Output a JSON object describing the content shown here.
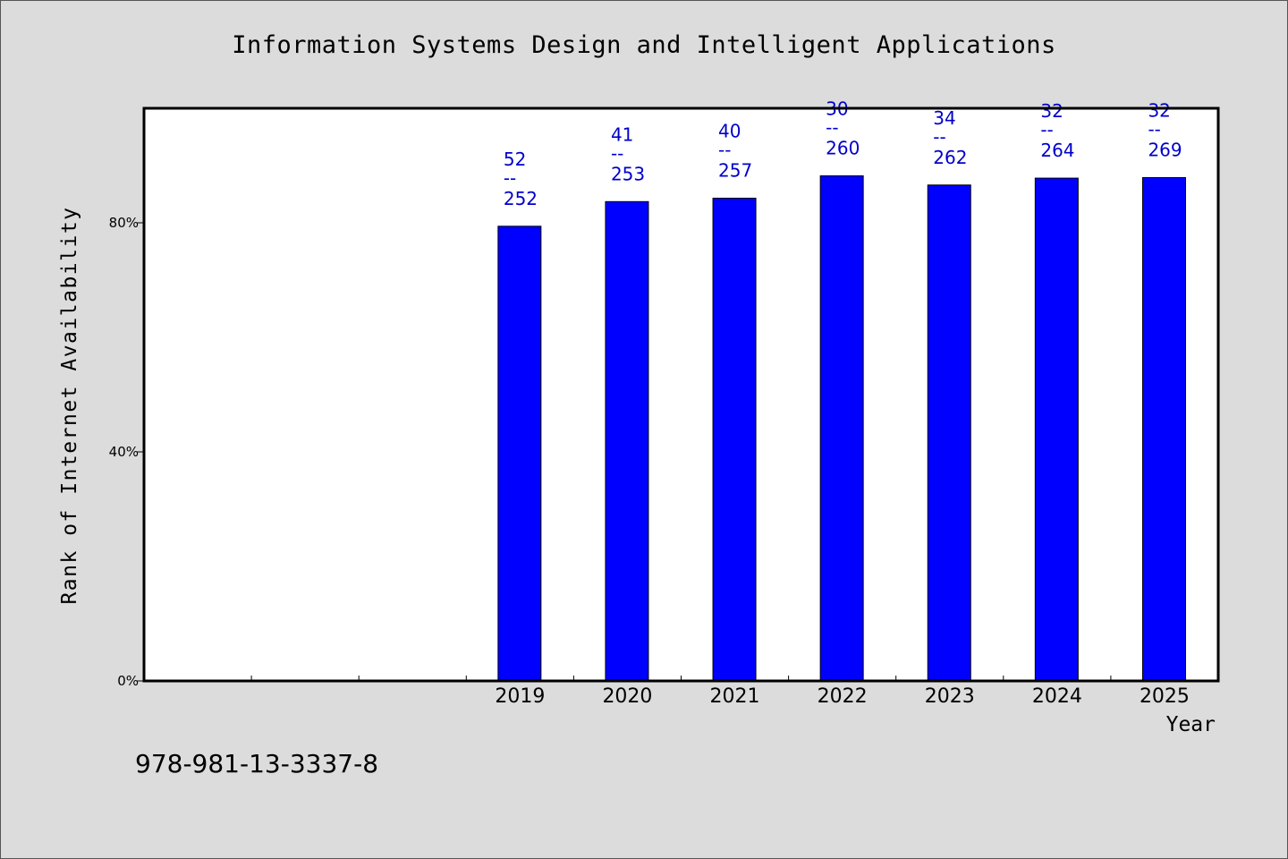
{
  "chart_data": {
    "type": "bar",
    "title": "Information Systems Design and Intelligent Applications",
    "xlabel": "Year",
    "ylabel": "Rank of Internet Availability",
    "categories": [
      "",
      "",
      "",
      "2019",
      "2020",
      "2021",
      "2022",
      "2023",
      "2024",
      "2025"
    ],
    "values": [
      null,
      null,
      null,
      79.4,
      83.7,
      84.3,
      88.2,
      86.6,
      87.8,
      87.9
    ],
    "bar_labels": [
      null,
      null,
      null,
      {
        "top": "52",
        "sep": "--",
        "bottom": "252"
      },
      {
        "top": "41",
        "sep": "--",
        "bottom": "253"
      },
      {
        "top": "40",
        "sep": "--",
        "bottom": "257"
      },
      {
        "top": "30",
        "sep": "--",
        "bottom": "260"
      },
      {
        "top": "34",
        "sep": "--",
        "bottom": "262"
      },
      {
        "top": "32",
        "sep": "--",
        "bottom": "264"
      },
      {
        "top": "32",
        "sep": "--",
        "bottom": "269"
      }
    ],
    "yticks": [
      0,
      40,
      80
    ],
    "ytick_labels": [
      "0%",
      "40%",
      "80%"
    ],
    "ylim": [
      0,
      100
    ],
    "grid": false,
    "colors": {
      "bar": "#0000ff",
      "label": "#0000cc",
      "plot_bg": "#ffffff",
      "figure_bg": "#dcdcdc"
    }
  },
  "footer": {
    "isbn": "978-981-13-3337-8"
  }
}
